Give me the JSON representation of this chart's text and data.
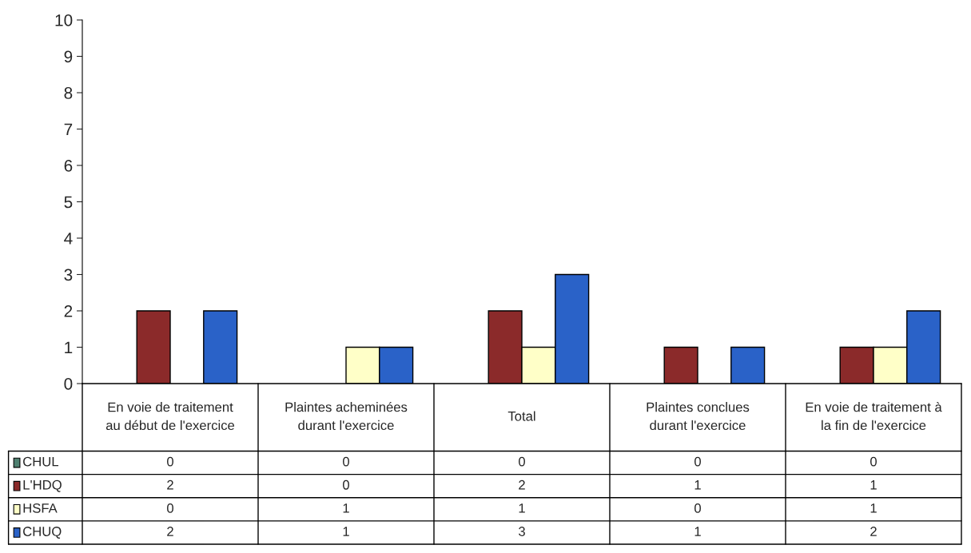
{
  "chart_data": {
    "type": "bar",
    "categories": [
      "En voie de traitement\nau début de l'exercice",
      "Plaintes acheminées\ndurant l'exercice",
      "Total",
      "Plaintes conclues\ndurant l'exercice",
      "En voie de traitement à\nla fin de l'exercice"
    ],
    "series": [
      {
        "name": "CHUL",
        "color": "#4f8070",
        "values": [
          0,
          0,
          0,
          0,
          0
        ]
      },
      {
        "name": "L'HDQ",
        "color": "#8b2a2a",
        "values": [
          2,
          0,
          2,
          1,
          1
        ]
      },
      {
        "name": "HSFA",
        "color": "#ffffc8",
        "values": [
          0,
          1,
          1,
          0,
          1
        ]
      },
      {
        "name": "CHUQ",
        "color": "#2a62c8",
        "values": [
          2,
          1,
          3,
          1,
          2
        ]
      }
    ],
    "ylim": [
      0,
      10
    ],
    "yticks": [
      0,
      1,
      2,
      3,
      4,
      5,
      6,
      7,
      8,
      9,
      10
    ],
    "grid": false,
    "legend": "bottom left",
    "data_labels": true
  }
}
